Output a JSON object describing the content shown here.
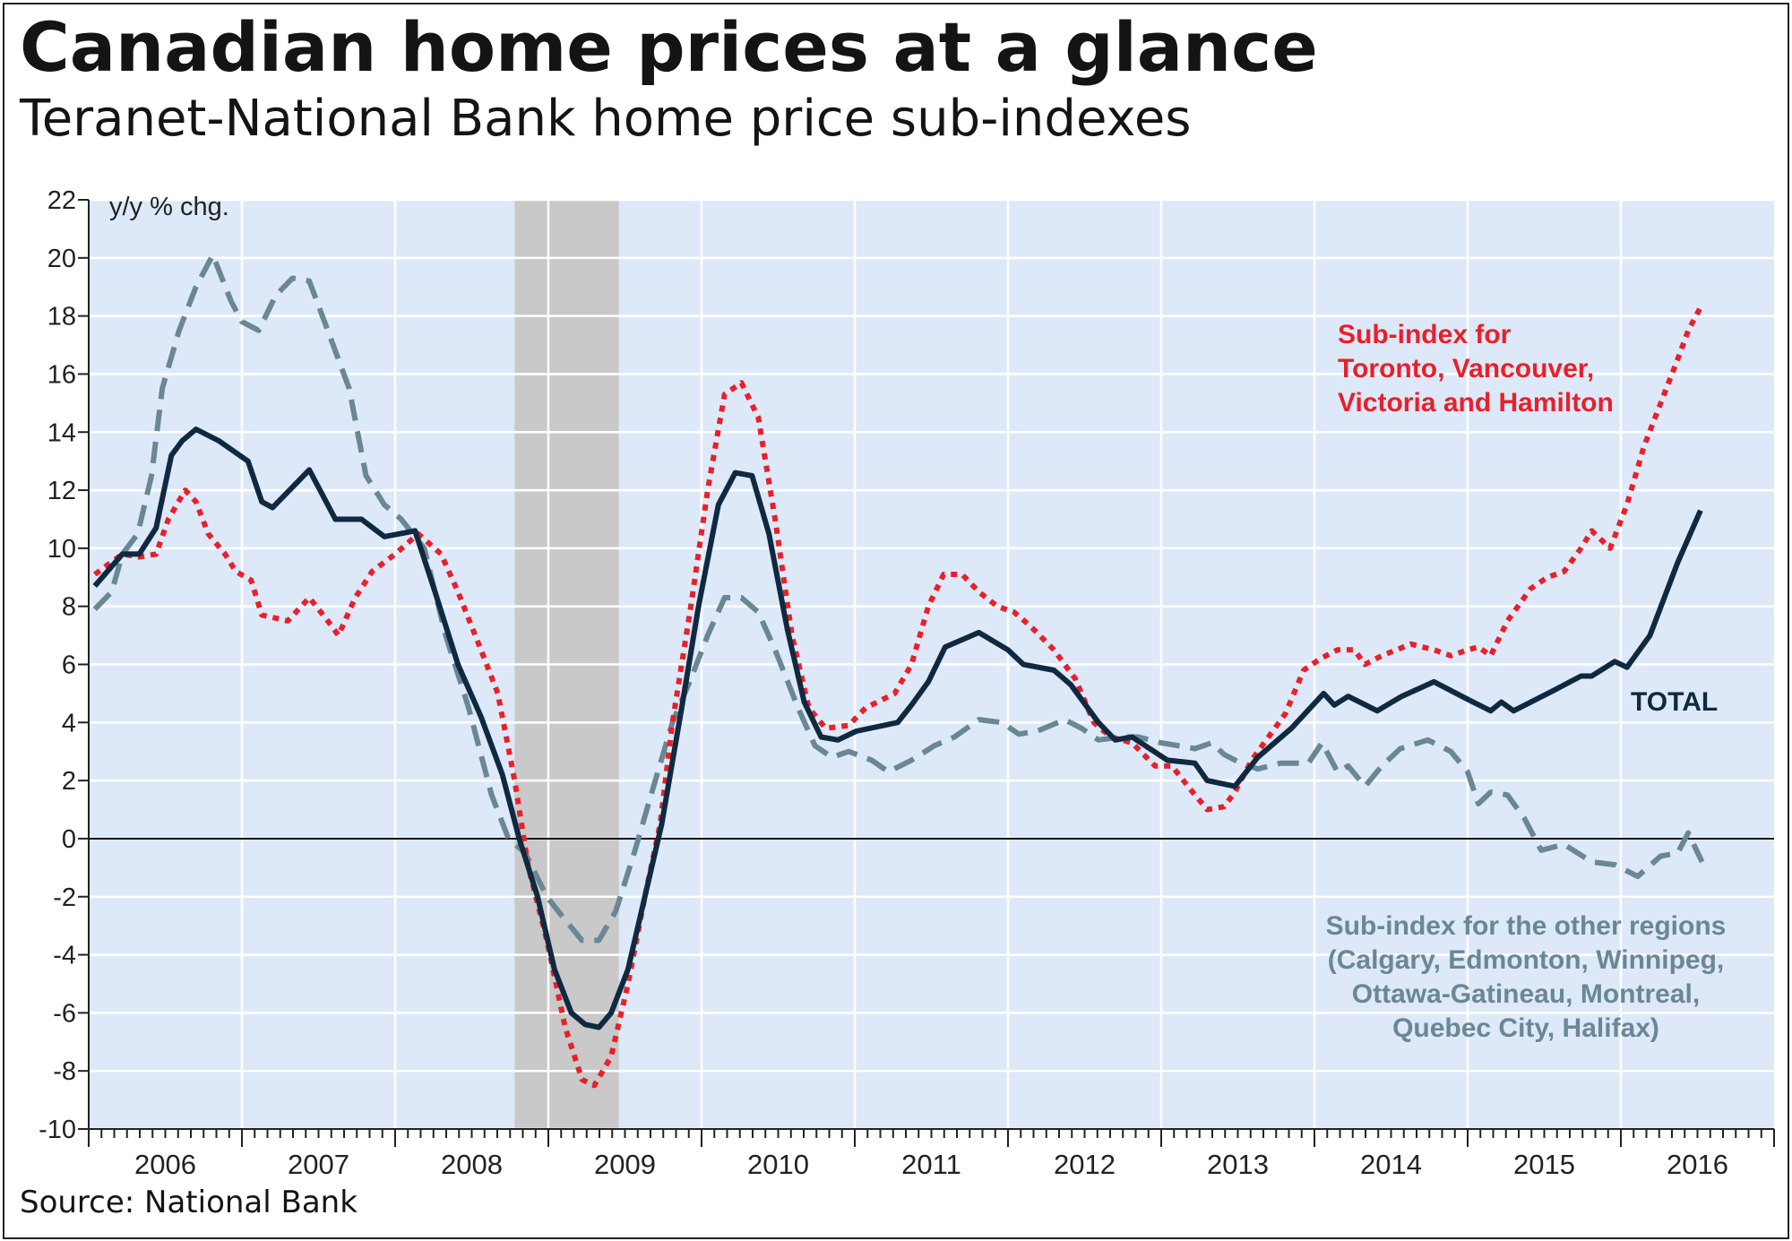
{
  "title": "Canadian home prices at a glance",
  "subtitle": "Teranet-National Bank home price sub-indexes",
  "source": "Source: National Bank",
  "chart_data": {
    "type": "line",
    "ylabel": "y/y % chg.",
    "ylim": [
      -10,
      22
    ],
    "yticks": [
      22,
      20,
      18,
      16,
      14,
      12,
      10,
      8,
      6,
      4,
      2,
      0,
      -2,
      -4,
      -6,
      -8,
      -10
    ],
    "xlim": [
      2006,
      2017
    ],
    "xticks": [
      "2006",
      "2007",
      "2008",
      "2009",
      "2010",
      "2011",
      "2012",
      "2013",
      "2014",
      "2015",
      "2016"
    ],
    "grid": true,
    "recession_shading": [
      2008.78,
      2009.46
    ],
    "colors": {
      "background": "#dde9f9",
      "shade": "#c9c9c9",
      "total": "#0f2a40",
      "toronto": "#e8202a",
      "other": "#6a8795"
    },
    "annotations": {
      "toronto": [
        "Sub-index for",
        "Toronto, Vancouver,",
        "Victoria and Hamilton"
      ],
      "total": "TOTAL",
      "other": [
        "Sub-index for the other regions",
        "(Calgary, Edmonton, Winnipeg,",
        "Ottawa-Gatineau, Montreal,",
        "Quebec City, Halifax)"
      ]
    },
    "series": [
      {
        "name": "TOTAL",
        "key": "total",
        "style": "solid",
        "points": [
          [
            2006.04,
            8.7
          ],
          [
            2006.22,
            9.8
          ],
          [
            2006.33,
            9.8
          ],
          [
            2006.44,
            10.7
          ],
          [
            2006.54,
            13.2
          ],
          [
            2006.61,
            13.7
          ],
          [
            2006.7,
            14.1
          ],
          [
            2006.85,
            13.7
          ],
          [
            2007.04,
            13.0
          ],
          [
            2007.13,
            11.6
          ],
          [
            2007.2,
            11.4
          ],
          [
            2007.44,
            12.7
          ],
          [
            2007.61,
            11.0
          ],
          [
            2007.78,
            11.0
          ],
          [
            2007.93,
            10.4
          ],
          [
            2008.13,
            10.6
          ],
          [
            2008.26,
            8.5
          ],
          [
            2008.41,
            6.0
          ],
          [
            2008.56,
            4.2
          ],
          [
            2008.7,
            2.2
          ],
          [
            2008.81,
            0
          ],
          [
            2008.93,
            -2
          ],
          [
            2009.04,
            -4.5
          ],
          [
            2009.15,
            -6.0
          ],
          [
            2009.24,
            -6.4
          ],
          [
            2009.33,
            -6.5
          ],
          [
            2009.41,
            -6.0
          ],
          [
            2009.52,
            -4.5
          ],
          [
            2009.63,
            -2
          ],
          [
            2009.74,
            0.5
          ],
          [
            2009.87,
            4.5
          ],
          [
            2009.98,
            8.0
          ],
          [
            2010.11,
            11.5
          ],
          [
            2010.22,
            12.6
          ],
          [
            2010.33,
            12.5
          ],
          [
            2010.44,
            10.5
          ],
          [
            2010.56,
            7.2
          ],
          [
            2010.67,
            4.7
          ],
          [
            2010.78,
            3.5
          ],
          [
            2010.89,
            3.4
          ],
          [
            2011.01,
            3.7
          ],
          [
            2011.28,
            4.0
          ],
          [
            2011.37,
            4.6
          ],
          [
            2011.48,
            5.4
          ],
          [
            2011.59,
            6.6
          ],
          [
            2011.81,
            7.1
          ],
          [
            2012.0,
            6.5
          ],
          [
            2012.1,
            6.0
          ],
          [
            2012.3,
            5.8
          ],
          [
            2012.41,
            5.3
          ],
          [
            2012.59,
            4.0
          ],
          [
            2012.7,
            3.4
          ],
          [
            2012.81,
            3.5
          ],
          [
            2013.04,
            2.7
          ],
          [
            2013.22,
            2.6
          ],
          [
            2013.3,
            2.0
          ],
          [
            2013.48,
            1.8
          ],
          [
            2013.63,
            2.8
          ],
          [
            2013.85,
            3.8
          ],
          [
            2014.06,
            5.0
          ],
          [
            2014.13,
            4.6
          ],
          [
            2014.22,
            4.9
          ],
          [
            2014.41,
            4.4
          ],
          [
            2014.57,
            4.9
          ],
          [
            2014.78,
            5.4
          ],
          [
            2015.0,
            4.8
          ],
          [
            2015.15,
            4.4
          ],
          [
            2015.22,
            4.7
          ],
          [
            2015.3,
            4.4
          ],
          [
            2015.56,
            5.1
          ],
          [
            2015.74,
            5.6
          ],
          [
            2015.81,
            5.6
          ],
          [
            2015.96,
            6.1
          ],
          [
            2016.04,
            5.9
          ],
          [
            2016.19,
            7.0
          ],
          [
            2016.37,
            9.5
          ],
          [
            2016.52,
            11.3
          ]
        ]
      },
      {
        "name": "Sub-index for Toronto, Vancouver, Victoria and Hamilton",
        "key": "toronto",
        "style": "dotted",
        "points": [
          [
            2006.04,
            9.1
          ],
          [
            2006.22,
            9.8
          ],
          [
            2006.33,
            9.7
          ],
          [
            2006.44,
            9.8
          ],
          [
            2006.52,
            11.0
          ],
          [
            2006.63,
            12.0
          ],
          [
            2006.7,
            11.6
          ],
          [
            2006.78,
            10.5
          ],
          [
            2006.89,
            9.8
          ],
          [
            2006.96,
            9.2
          ],
          [
            2007.06,
            8.9
          ],
          [
            2007.13,
            7.7
          ],
          [
            2007.3,
            7.5
          ],
          [
            2007.44,
            8.3
          ],
          [
            2007.56,
            7.5
          ],
          [
            2007.63,
            7.0
          ],
          [
            2007.74,
            8.3
          ],
          [
            2007.85,
            9.2
          ],
          [
            2008.0,
            9.8
          ],
          [
            2008.15,
            10.5
          ],
          [
            2008.3,
            9.8
          ],
          [
            2008.41,
            8.5
          ],
          [
            2008.56,
            6.5
          ],
          [
            2008.67,
            5.0
          ],
          [
            2008.78,
            2.0
          ],
          [
            2008.87,
            -1
          ],
          [
            2008.99,
            -3.5
          ],
          [
            2009.11,
            -6.5
          ],
          [
            2009.22,
            -8.3
          ],
          [
            2009.3,
            -8.5
          ],
          [
            2009.41,
            -7.5
          ],
          [
            2009.52,
            -5
          ],
          [
            2009.63,
            -2
          ],
          [
            2009.73,
            0.5
          ],
          [
            2009.81,
            4
          ],
          [
            2009.93,
            8
          ],
          [
            2010.04,
            12
          ],
          [
            2010.15,
            15.3
          ],
          [
            2010.26,
            15.7
          ],
          [
            2010.37,
            14.5
          ],
          [
            2010.48,
            11
          ],
          [
            2010.59,
            7
          ],
          [
            2010.7,
            4.5
          ],
          [
            2010.81,
            3.8
          ],
          [
            2010.96,
            3.9
          ],
          [
            2011.07,
            4.5
          ],
          [
            2011.26,
            5.0
          ],
          [
            2011.37,
            6.0
          ],
          [
            2011.48,
            8.0
          ],
          [
            2011.58,
            9.1
          ],
          [
            2011.7,
            9.1
          ],
          [
            2011.81,
            8.5
          ],
          [
            2011.93,
            8.0
          ],
          [
            2012.04,
            7.8
          ],
          [
            2012.15,
            7.3
          ],
          [
            2012.3,
            6.5
          ],
          [
            2012.44,
            5.5
          ],
          [
            2012.56,
            4.0
          ],
          [
            2012.67,
            3.5
          ],
          [
            2012.81,
            3.3
          ],
          [
            2012.96,
            2.5
          ],
          [
            2013.07,
            2.5
          ],
          [
            2013.19,
            1.7
          ],
          [
            2013.3,
            1.0
          ],
          [
            2013.41,
            1.1
          ],
          [
            2013.48,
            1.6
          ],
          [
            2013.59,
            2.7
          ],
          [
            2013.7,
            3.5
          ],
          [
            2013.81,
            4.3
          ],
          [
            2013.93,
            5.8
          ],
          [
            2014.04,
            6.2
          ],
          [
            2014.15,
            6.5
          ],
          [
            2014.26,
            6.5
          ],
          [
            2014.33,
            6.0
          ],
          [
            2014.44,
            6.3
          ],
          [
            2014.63,
            6.7
          ],
          [
            2014.78,
            6.5
          ],
          [
            2014.89,
            6.3
          ],
          [
            2015.0,
            6.5
          ],
          [
            2015.07,
            6.6
          ],
          [
            2015.15,
            6.3
          ],
          [
            2015.26,
            7.5
          ],
          [
            2015.41,
            8.6
          ],
          [
            2015.52,
            9.0
          ],
          [
            2015.63,
            9.2
          ],
          [
            2015.74,
            10.0
          ],
          [
            2015.81,
            10.6
          ],
          [
            2015.93,
            10.0
          ],
          [
            2016.04,
            11.5
          ],
          [
            2016.15,
            13.5
          ],
          [
            2016.26,
            15.0
          ],
          [
            2016.37,
            16.5
          ],
          [
            2016.44,
            17.5
          ],
          [
            2016.52,
            18.3
          ]
        ]
      },
      {
        "name": "Sub-index for the other regions",
        "key": "other",
        "style": "dashed",
        "points": [
          [
            2006.04,
            7.9
          ],
          [
            2006.15,
            8.5
          ],
          [
            2006.22,
            9.8
          ],
          [
            2006.32,
            10.5
          ],
          [
            2006.41,
            12.5
          ],
          [
            2006.48,
            15.5
          ],
          [
            2006.59,
            17.5
          ],
          [
            2006.7,
            19
          ],
          [
            2006.81,
            20.1
          ],
          [
            2006.93,
            18.5
          ],
          [
            2007.0,
            17.8
          ],
          [
            2007.11,
            17.5
          ],
          [
            2007.22,
            18.7
          ],
          [
            2007.33,
            19.3
          ],
          [
            2007.44,
            19.2
          ],
          [
            2007.56,
            17.5
          ],
          [
            2007.7,
            15.5
          ],
          [
            2007.81,
            12.5
          ],
          [
            2007.93,
            11.5
          ],
          [
            2008.04,
            11.0
          ],
          [
            2008.19,
            10.0
          ],
          [
            2008.33,
            7.0
          ],
          [
            2008.48,
            4.5
          ],
          [
            2008.63,
            1.5
          ],
          [
            2008.74,
            0
          ],
          [
            2008.85,
            -0.5
          ],
          [
            2008.99,
            -2
          ],
          [
            2009.11,
            -2.8
          ],
          [
            2009.22,
            -3.5
          ],
          [
            2009.33,
            -3.5
          ],
          [
            2009.44,
            -2.5
          ],
          [
            2009.56,
            -0.5
          ],
          [
            2009.67,
            1.5
          ],
          [
            2009.81,
            4.0
          ],
          [
            2009.93,
            5.5
          ],
          [
            2010.04,
            7.0
          ],
          [
            2010.15,
            8.3
          ],
          [
            2010.26,
            8.3
          ],
          [
            2010.37,
            7.8
          ],
          [
            2010.48,
            6.5
          ],
          [
            2010.63,
            4.5
          ],
          [
            2010.74,
            3.2
          ],
          [
            2010.85,
            2.8
          ],
          [
            2010.96,
            3.0
          ],
          [
            2011.11,
            2.7
          ],
          [
            2011.22,
            2.3
          ],
          [
            2011.37,
            2.7
          ],
          [
            2011.52,
            3.2
          ],
          [
            2011.65,
            3.5
          ],
          [
            2011.81,
            4.1
          ],
          [
            2011.96,
            4.0
          ],
          [
            2012.07,
            3.6
          ],
          [
            2012.19,
            3.7
          ],
          [
            2012.37,
            4.1
          ],
          [
            2012.48,
            3.8
          ],
          [
            2012.59,
            3.4
          ],
          [
            2012.74,
            3.5
          ],
          [
            2012.85,
            3.5
          ],
          [
            2013.0,
            3.3
          ],
          [
            2013.11,
            3.2
          ],
          [
            2013.22,
            3.1
          ],
          [
            2013.33,
            3.3
          ],
          [
            2013.41,
            2.9
          ],
          [
            2013.52,
            2.6
          ],
          [
            2013.63,
            2.4
          ],
          [
            2013.78,
            2.6
          ],
          [
            2013.96,
            2.6
          ],
          [
            2014.05,
            3.3
          ],
          [
            2014.15,
            2.3
          ],
          [
            2014.22,
            2.5
          ],
          [
            2014.33,
            1.8
          ],
          [
            2014.44,
            2.5
          ],
          [
            2014.56,
            3.1
          ],
          [
            2014.74,
            3.4
          ],
          [
            2014.89,
            3.0
          ],
          [
            2015.0,
            2.3
          ],
          [
            2015.07,
            1.2
          ],
          [
            2015.15,
            1.6
          ],
          [
            2015.26,
            1.5
          ],
          [
            2015.37,
            0.7
          ],
          [
            2015.48,
            -0.4
          ],
          [
            2015.63,
            -0.2
          ],
          [
            2015.81,
            -0.8
          ],
          [
            2015.96,
            -0.9
          ],
          [
            2016.11,
            -1.3
          ],
          [
            2016.26,
            -0.6
          ],
          [
            2016.37,
            -0.5
          ],
          [
            2016.44,
            0.2
          ],
          [
            2016.53,
            -0.8
          ]
        ]
      }
    ]
  }
}
